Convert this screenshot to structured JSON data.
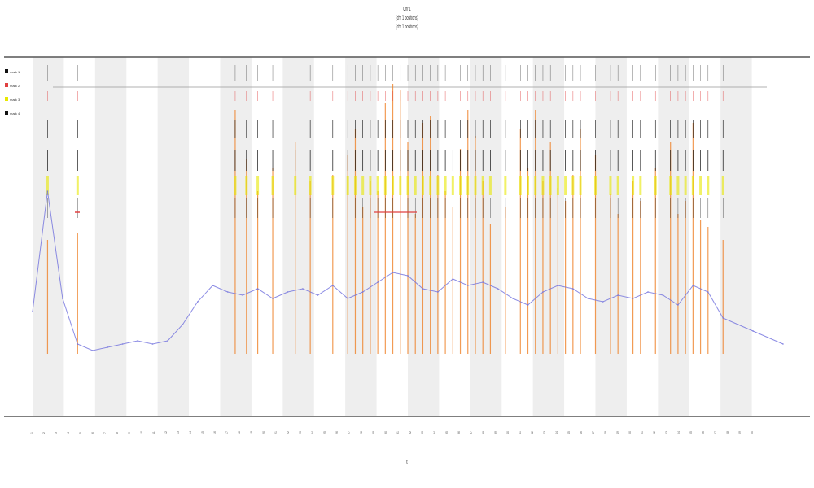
{
  "header": {
    "title_lines": [
      "Chr 1",
      "(chr 1 positions)",
      "(chr 1 positions)"
    ]
  },
  "legend": {
    "items": [
      "mark 1",
      "mark 2",
      "mark 3",
      "mark 4"
    ]
  },
  "colors": {
    "band": "#eeeeee",
    "axis": "#555555",
    "coverage": "#6f6fdd",
    "peaks": "#ee7a1c",
    "highlight": "#e8e800",
    "red_marks": "#e04040",
    "tick_marks": "#111111"
  },
  "chart_data": {
    "type": "line",
    "title": "Chr 1",
    "xlabel": "t",
    "ylabel": "",
    "band_count": 24,
    "grid": false,
    "legend_position": "top-left",
    "series": [
      {
        "name": "coverage",
        "x": [
          0,
          2,
          4,
          6,
          8,
          10,
          12,
          14,
          16,
          18,
          20,
          22,
          24,
          26,
          28,
          30,
          32,
          34,
          36,
          38,
          40,
          42,
          44,
          46,
          48,
          50,
          52,
          54,
          56,
          58,
          60,
          62,
          64,
          66,
          68,
          70,
          72,
          74,
          76,
          78,
          80,
          82,
          84,
          86,
          88,
          90,
          92,
          94,
          96,
          98,
          100
        ],
        "y": [
          0.18,
          0.55,
          0.22,
          0.08,
          0.06,
          0.07,
          0.08,
          0.09,
          0.08,
          0.09,
          0.14,
          0.21,
          0.26,
          0.24,
          0.23,
          0.25,
          0.22,
          0.24,
          0.25,
          0.23,
          0.26,
          0.22,
          0.24,
          0.27,
          0.3,
          0.29,
          0.25,
          0.24,
          0.28,
          0.26,
          0.27,
          0.25,
          0.22,
          0.2,
          0.24,
          0.26,
          0.25,
          0.22,
          0.21,
          0.23,
          0.22,
          0.24,
          0.23,
          0.2,
          0.26,
          0.24,
          0.16,
          0.14,
          0.12,
          0.1,
          0.08
        ]
      },
      {
        "name": "peaks",
        "x": [
          2,
          6,
          27,
          28.5,
          30,
          32,
          35,
          37,
          40,
          42,
          43,
          44,
          45,
          46,
          47,
          48,
          49,
          50,
          51,
          52,
          53,
          54,
          55,
          56,
          57,
          58,
          59,
          60,
          61,
          63,
          65,
          66,
          67,
          68,
          69,
          70,
          71,
          72,
          73,
          75,
          77,
          78,
          80,
          81,
          83,
          85,
          86,
          87,
          88,
          89,
          90,
          92
        ],
        "y": [
          0.4,
          0.42,
          0.8,
          0.65,
          0.55,
          0.62,
          0.7,
          0.58,
          0.6,
          0.66,
          0.74,
          0.5,
          0.58,
          0.55,
          0.82,
          0.88,
          0.86,
          0.7,
          0.48,
          0.76,
          0.78,
          0.6,
          0.55,
          0.5,
          0.68,
          0.8,
          0.72,
          0.58,
          0.45,
          0.5,
          0.74,
          0.62,
          0.8,
          0.58,
          0.7,
          0.56,
          0.52,
          0.6,
          0.74,
          0.66,
          0.54,
          0.48,
          0.58,
          0.52,
          0.62,
          0.7,
          0.48,
          0.52,
          0.76,
          0.46,
          0.44,
          0.4
        ]
      }
    ]
  },
  "xaxis": {
    "ticks": [
      "1",
      "2",
      "3",
      "4",
      "5",
      "6",
      "7",
      "8",
      "9",
      "10",
      "11",
      "12",
      "13",
      "14",
      "15",
      "16",
      "17",
      "18",
      "19",
      "20",
      "21",
      "22",
      "23",
      "24",
      "25",
      "26",
      "27",
      "28",
      "29",
      "30",
      "31",
      "32",
      "33",
      "34",
      "35",
      "36",
      "37",
      "38",
      "39",
      "40",
      "41",
      "42",
      "43",
      "44",
      "45",
      "46",
      "47",
      "48",
      "49",
      "50",
      "51",
      "52",
      "53",
      "54",
      "55",
      "56",
      "57",
      "58",
      "59",
      "60"
    ]
  }
}
